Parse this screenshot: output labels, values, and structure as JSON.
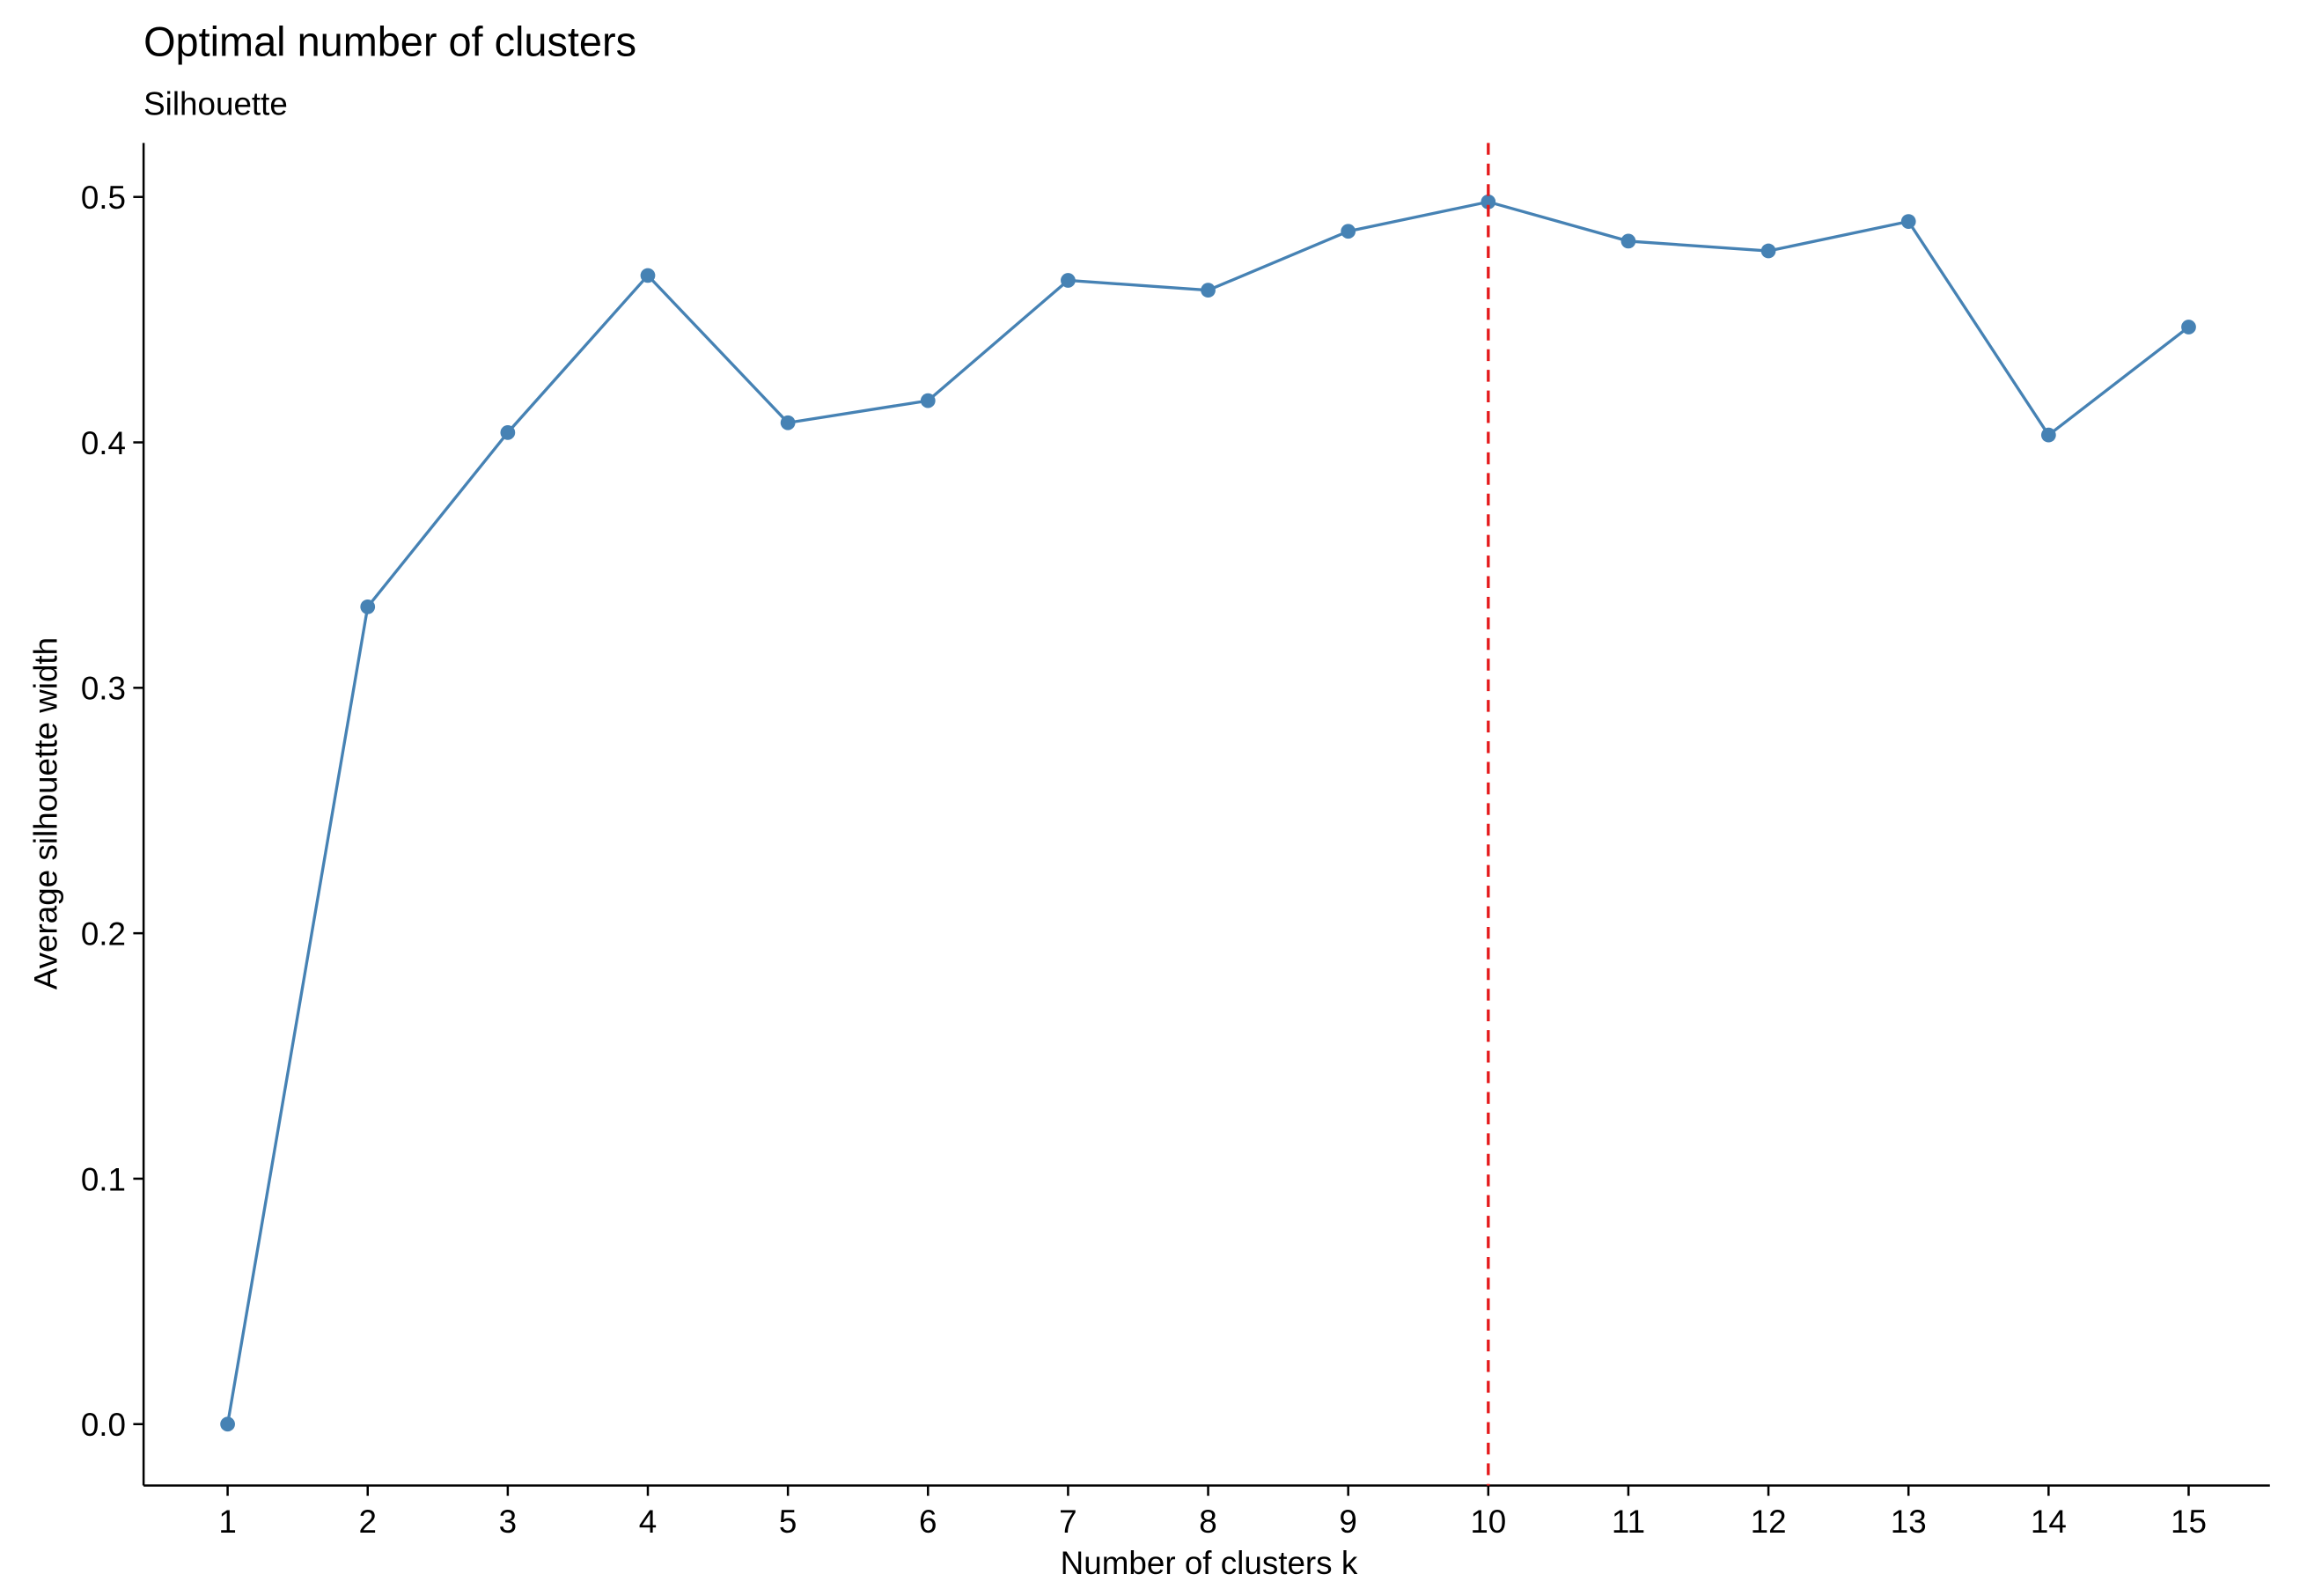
{
  "chart_data": {
    "type": "line",
    "title": "Optimal number of clusters",
    "subtitle": "Silhouette",
    "x_label": "Number of clusters k",
    "y_label": "Average silhouette width",
    "x": [
      1,
      2,
      3,
      4,
      5,
      6,
      7,
      8,
      9,
      10,
      11,
      12,
      13,
      14,
      15
    ],
    "series": [
      {
        "color": "#4682b4",
        "values": [
          0,
          0.333,
          0.404,
          0.468,
          0.408,
          0.417,
          0.466,
          0.462,
          0.486,
          0.498,
          0.482,
          0.478,
          0.49,
          0.403,
          0.447
        ]
      }
    ],
    "xlim": [
      0.4,
      15.58
    ],
    "ylim": [
      -0.025,
      0.522
    ],
    "xticks": [
      1,
      2,
      3,
      4,
      5,
      6,
      7,
      8,
      9,
      10,
      11,
      12,
      13,
      14,
      15
    ],
    "yticks": [
      {
        "value": 0,
        "label": "0.0"
      },
      0.1,
      0.2,
      0.3,
      0.4,
      0.5
    ],
    "vline": {
      "x": 10,
      "color": "#e41a1c"
    }
  }
}
